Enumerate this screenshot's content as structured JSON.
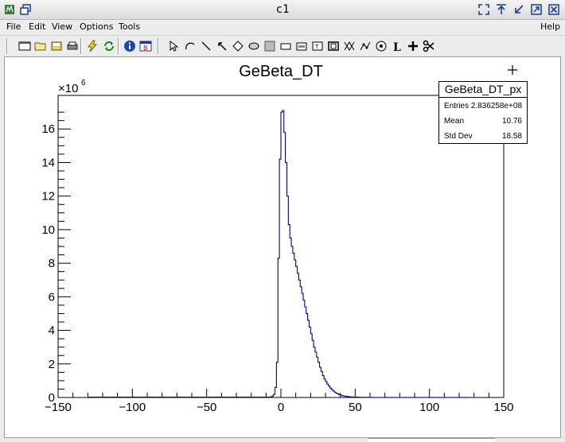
{
  "window": {
    "title": "c1"
  },
  "menu": [
    {
      "label": "File"
    },
    {
      "label": "Edit"
    },
    {
      "label": "View"
    },
    {
      "label": "Options"
    },
    {
      "label": "Tools"
    },
    {
      "label": "Help"
    }
  ],
  "chart_data": {
    "type": "bar",
    "title": "GeBeta_DT",
    "xlabel": "",
    "ylabel": "",
    "xlim": [
      -150,
      150
    ],
    "ylim": [
      0,
      18000000
    ],
    "x_ticks": [
      -150,
      -100,
      -50,
      0,
      50,
      100,
      150
    ],
    "x_tick_labels": [
      "−150",
      "−100",
      "−50",
      "0",
      "50",
      "100",
      "150"
    ],
    "y_ticks": [
      0,
      2,
      4,
      6,
      8,
      10,
      12,
      14,
      16
    ],
    "y_tick_labels": [
      "0",
      "2",
      "4",
      "6",
      "8",
      "10",
      "12",
      "14",
      "16"
    ],
    "y_multiplier": {
      "base": "×10",
      "exp": "6"
    },
    "line_color": "#000080",
    "bin_width": 1,
    "bins_x": [
      -8,
      -7,
      -6,
      -5,
      -4,
      -3,
      -2,
      -1,
      0,
      1,
      2,
      3,
      4,
      5,
      6,
      7,
      8,
      9,
      10,
      11,
      12,
      13,
      14,
      15,
      16,
      17,
      18,
      19,
      20,
      21,
      22,
      23,
      24,
      25,
      26,
      27,
      28,
      29,
      30,
      31,
      32,
      33,
      34,
      35,
      36,
      37,
      38,
      39,
      40,
      41,
      42,
      43,
      44,
      45,
      46,
      47,
      48,
      49,
      50,
      52,
      54,
      56,
      58,
      60,
      62,
      64,
      66,
      68,
      70,
      72,
      74,
      76,
      78,
      80,
      85,
      90,
      95,
      100,
      105,
      110,
      115,
      120,
      125
    ],
    "values_millions": [
      0.02,
      0.04,
      0.08,
      0.18,
      0.6,
      2.1,
      8.3,
      14.2,
      17.0,
      17.1,
      15.8,
      14.0,
      12.0,
      10.3,
      9.5,
      9.0,
      8.6,
      8.2,
      7.8,
      7.4,
      7.0,
      6.6,
      6.2,
      5.8,
      5.4,
      5.0,
      4.6,
      4.2,
      3.8,
      3.4,
      3.0,
      2.7,
      2.4,
      2.1,
      1.8,
      1.55,
      1.3,
      1.1,
      0.95,
      0.8,
      0.68,
      0.56,
      0.47,
      0.39,
      0.32,
      0.26,
      0.21,
      0.17,
      0.14,
      0.11,
      0.09,
      0.07,
      0.06,
      0.05,
      0.04,
      0.035,
      0.03,
      0.025,
      0.02,
      0.015,
      0.012,
      0.01,
      0.008,
      0.006,
      0.005,
      0.004,
      0.003,
      0.003,
      0.002,
      0.002,
      0.002,
      0.002,
      0.001,
      0.001,
      0.001,
      0.001,
      0.001,
      0.001,
      0.001,
      0.001,
      0.001,
      0.001,
      0.001
    ]
  },
  "stats": {
    "name": "GeBeta_DT_px",
    "entries_label": "Entries",
    "entries_value": "2.836258e+08",
    "mean_label": "Mean",
    "mean_value": "10.76",
    "std_label": "Std Dev",
    "std_value": "18.58"
  }
}
